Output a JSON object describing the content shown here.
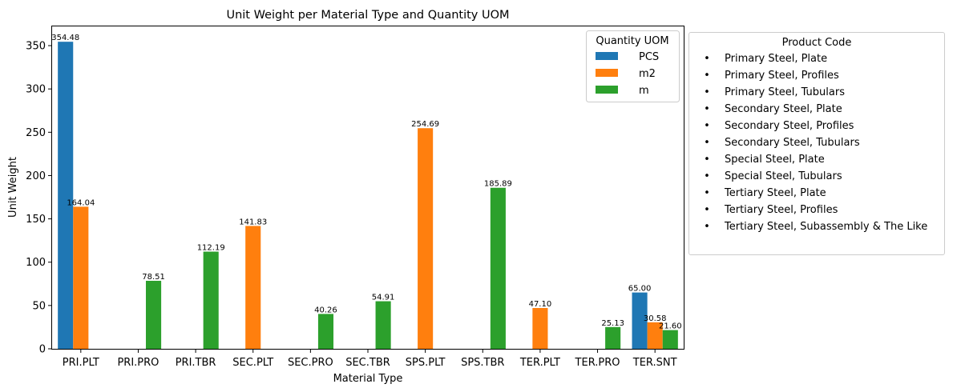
{
  "chart_data": {
    "type": "bar",
    "title": "Unit Weight per Material Type and Quantity UOM",
    "xlabel": "Material Type",
    "ylabel": "Unit Weight",
    "categories": [
      "PRI.PLT",
      "PRI.PRO",
      "PRI.TBR",
      "SEC.PLT",
      "SEC.PRO",
      "SEC.TBR",
      "SPS.PLT",
      "SPS.TBR",
      "TER.PLT",
      "TER.PRO",
      "TER.SNT"
    ],
    "series": [
      {
        "name": "PCS",
        "color": "#1f77b4",
        "values": [
          354.48,
          null,
          null,
          null,
          null,
          null,
          null,
          null,
          null,
          null,
          65.0
        ]
      },
      {
        "name": "m2",
        "color": "#ff7f0e",
        "values": [
          164.04,
          null,
          null,
          141.83,
          null,
          null,
          254.69,
          null,
          47.1,
          null,
          30.58
        ]
      },
      {
        "name": "m",
        "color": "#2ca02c",
        "values": [
          null,
          78.51,
          112.19,
          null,
          40.26,
          54.91,
          null,
          185.89,
          null,
          25.13,
          21.6
        ]
      }
    ],
    "ylim": [
      0,
      372.2
    ],
    "yticks": [
      0,
      50,
      100,
      150,
      200,
      250,
      300,
      350
    ],
    "grid": false,
    "legend_title": "Quantity UOM",
    "legend_position": "top-right"
  },
  "product_code_legend": {
    "title": "Product Code",
    "bullet": "•",
    "items": [
      "Primary Steel, Plate",
      "Primary Steel, Profiles",
      "Primary Steel, Tubulars",
      "Secondary Steel, Plate",
      "Secondary Steel, Profiles",
      "Secondary Steel, Tubulars",
      "Special Steel, Plate",
      "Special Steel, Tubulars",
      "Tertiary Steel, Plate",
      "Tertiary Steel, Profiles",
      "Tertiary Steel, Subassembly & The Like"
    ]
  }
}
